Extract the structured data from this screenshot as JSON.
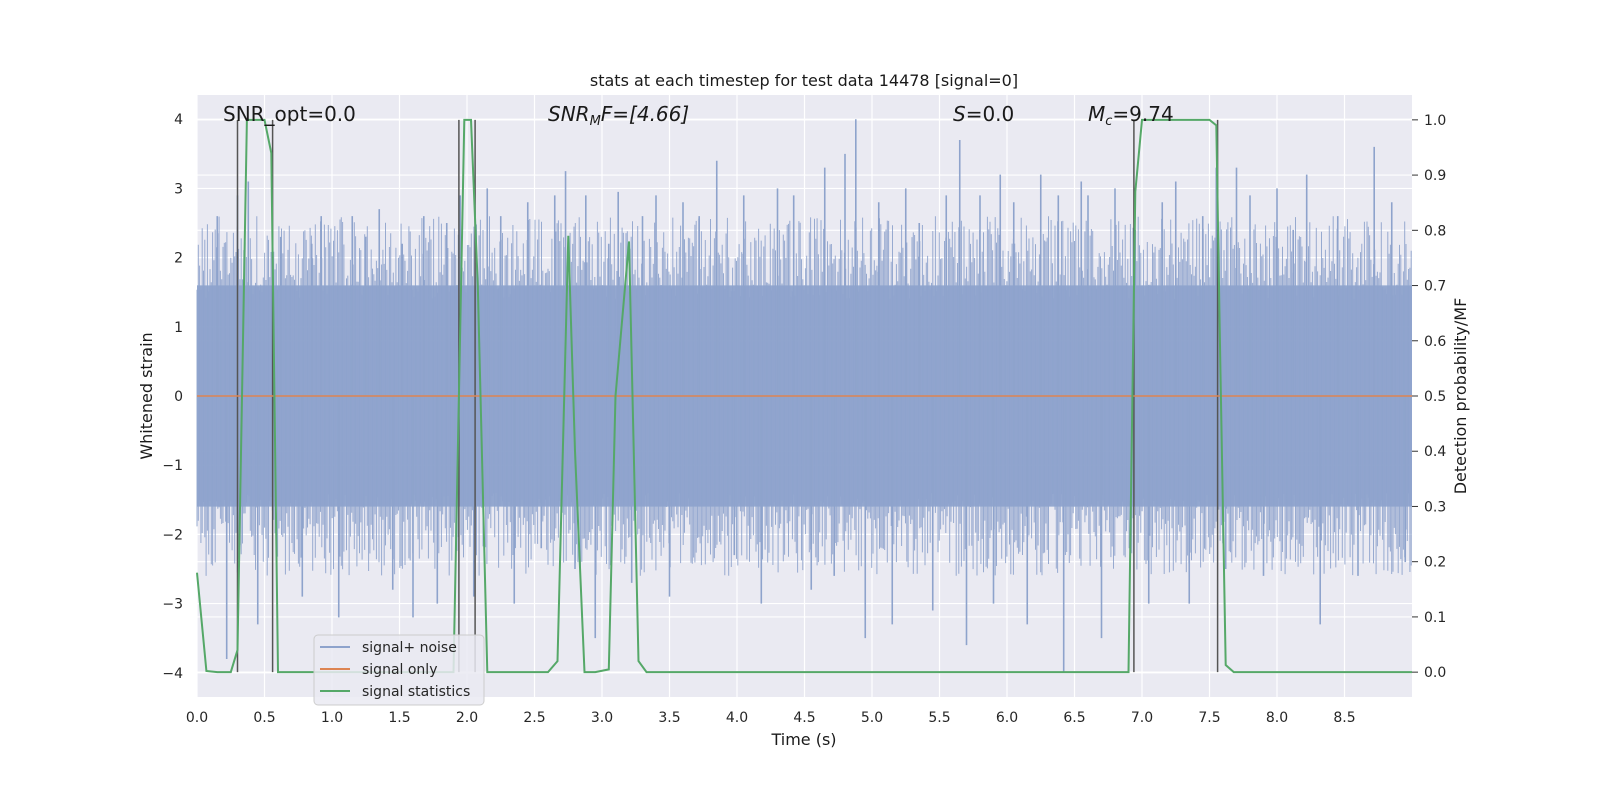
{
  "chart_data": {
    "type": "line",
    "title": "stats at each timestep for test data 14478 [signal=0]",
    "xlabel": "Time (s)",
    "ylabel_left": "Whitened strain",
    "ylabel_right": "Detection probability/MF",
    "xlim": [
      0.0,
      9.0
    ],
    "ylim_left": [
      -4.35,
      4.35
    ],
    "ylim_right": [
      -0.045,
      1.045
    ],
    "xticks": [
      "0.0",
      "0.5",
      "1.0",
      "1.5",
      "2.0",
      "2.5",
      "3.0",
      "3.5",
      "4.0",
      "4.5",
      "5.0",
      "5.5",
      "6.0",
      "6.5",
      "7.0",
      "7.5",
      "8.0",
      "8.5"
    ],
    "yticks_left": [
      "4",
      "3",
      "2",
      "1",
      "0",
      "−1",
      "−2",
      "−3",
      "−4"
    ],
    "yticks_right": [
      "1.0",
      "0.9",
      "0.8",
      "0.7",
      "0.6",
      "0.5",
      "0.4",
      "0.3",
      "0.2",
      "0.1",
      "0.0"
    ],
    "grid": true,
    "legend_position": "lower-left",
    "annotations": {
      "snr_opt": "SNR_opt=0.0",
      "snr_mf_main": "SNR",
      "snr_mf_sub": "M",
      "snr_mf_tail": "F=[4.66]",
      "s_main": "S",
      "s_tail": "=0.0",
      "mc_main": "M",
      "mc_sub": "c",
      "mc_tail": "=9.74"
    },
    "series": [
      {
        "name": "signal+ noise",
        "color": "#8ea3cc",
        "description_values": "whitened noise, amplitude mostly within ±2, peaks up to ±4",
        "envelope_core": 1.6,
        "spikes": [
          [
            0.15,
            2.6
          ],
          [
            0.22,
            -3.8
          ],
          [
            0.3,
            2.9
          ],
          [
            0.38,
            3.1
          ],
          [
            0.45,
            -3.3
          ],
          [
            0.62,
            2.3
          ],
          [
            0.78,
            -2.9
          ],
          [
            0.85,
            2.2
          ],
          [
            0.92,
            2.6
          ],
          [
            1.05,
            -3.2
          ],
          [
            1.15,
            2.6
          ],
          [
            1.25,
            2.3
          ],
          [
            1.35,
            2.7
          ],
          [
            1.45,
            -2.8
          ],
          [
            1.52,
            2.2
          ],
          [
            1.6,
            -3.2
          ],
          [
            1.68,
            2.6
          ],
          [
            1.78,
            -3.0
          ],
          [
            1.85,
            2.5
          ],
          [
            1.95,
            2.9
          ],
          [
            2.05,
            -2.9
          ],
          [
            2.15,
            3.0
          ],
          [
            2.25,
            2.6
          ],
          [
            2.35,
            -3.0
          ],
          [
            2.45,
            2.8
          ],
          [
            2.55,
            -2.2
          ],
          [
            2.65,
            2.9
          ],
          [
            2.73,
            3.25
          ],
          [
            2.8,
            -2.5
          ],
          [
            2.88,
            2.9
          ],
          [
            2.95,
            -3.5
          ],
          [
            3.05,
            2.2
          ],
          [
            3.12,
            2.95
          ],
          [
            3.22,
            -2.7
          ],
          [
            3.3,
            2.6
          ],
          [
            3.4,
            2.9
          ],
          [
            3.5,
            -2.9
          ],
          [
            3.6,
            2.8
          ],
          [
            3.72,
            2.6
          ],
          [
            3.85,
            3.4
          ],
          [
            3.98,
            -2.3
          ],
          [
            4.05,
            2.9
          ],
          [
            4.18,
            -3.0
          ],
          [
            4.3,
            3.0
          ],
          [
            4.42,
            2.9
          ],
          [
            4.55,
            -2.8
          ],
          [
            4.65,
            3.3
          ],
          [
            4.72,
            -2.6
          ],
          [
            4.8,
            3.5
          ],
          [
            4.88,
            4.0
          ],
          [
            4.95,
            -3.5
          ],
          [
            5.05,
            2.8
          ],
          [
            5.15,
            -3.3
          ],
          [
            5.25,
            3.0
          ],
          [
            5.35,
            2.5
          ],
          [
            5.45,
            -3.1
          ],
          [
            5.55,
            2.9
          ],
          [
            5.65,
            3.7
          ],
          [
            5.7,
            -3.6
          ],
          [
            5.8,
            2.9
          ],
          [
            5.9,
            -3.0
          ],
          [
            5.95,
            3.2
          ],
          [
            6.05,
            2.8
          ],
          [
            6.15,
            -3.3
          ],
          [
            6.25,
            3.2
          ],
          [
            6.38,
            2.9
          ],
          [
            6.42,
            -4.0
          ],
          [
            6.55,
            3.1
          ],
          [
            6.6,
            2.9
          ],
          [
            6.7,
            -3.5
          ],
          [
            6.8,
            3.0
          ],
          [
            6.95,
            2.4
          ],
          [
            7.05,
            -3.0
          ],
          [
            7.15,
            2.8
          ],
          [
            7.25,
            3.1
          ],
          [
            7.35,
            -3.0
          ],
          [
            7.45,
            2.6
          ],
          [
            7.55,
            3.3
          ],
          [
            7.62,
            -2.5
          ],
          [
            7.7,
            3.3
          ],
          [
            7.8,
            2.9
          ],
          [
            7.9,
            -2.6
          ],
          [
            8.0,
            3.0
          ],
          [
            8.12,
            2.4
          ],
          [
            8.22,
            3.2
          ],
          [
            8.32,
            -3.3
          ],
          [
            8.45,
            2.6
          ],
          [
            8.6,
            -2.6
          ],
          [
            8.72,
            3.6
          ],
          [
            8.85,
            2.8
          ],
          [
            8.95,
            -2.4
          ]
        ]
      },
      {
        "name": "signal only",
        "color": "#dd8452",
        "x": [
          0.0,
          9.0
        ],
        "y": [
          0.0,
          0.0
        ]
      },
      {
        "name": "signal statistics",
        "color": "#55a868",
        "axis": "right",
        "x": [
          0.0,
          0.07,
          0.15,
          0.25,
          0.3,
          0.37,
          0.45,
          0.5,
          0.55,
          0.6,
          0.63,
          0.68,
          0.75,
          1.5,
          1.9,
          1.98,
          2.03,
          2.08,
          2.15,
          2.2,
          2.25,
          2.35,
          2.5,
          2.6,
          2.67,
          2.75,
          2.8,
          2.87,
          2.95,
          3.05,
          3.1,
          3.2,
          3.27,
          3.33,
          3.5,
          6.5,
          6.9,
          6.95,
          7.0,
          7.5,
          7.55,
          7.58,
          7.62,
          7.68,
          8.0,
          9.0
        ],
        "y": [
          0.18,
          0.002,
          0.0,
          0.0,
          0.04,
          1.0,
          1.0,
          1.0,
          0.94,
          0.0,
          0.0,
          0.0,
          0.0,
          0.0,
          0.0,
          1.0,
          1.0,
          0.7,
          0.0,
          0.0,
          0.0,
          0.0,
          0.0,
          0.0,
          0.02,
          0.79,
          0.4,
          0.0,
          0.0,
          0.005,
          0.5,
          0.78,
          0.02,
          0.0,
          0.0,
          0.0,
          0.0,
          0.87,
          1.0,
          1.0,
          0.99,
          0.56,
          0.013,
          0.0,
          0.0,
          0.0
        ]
      }
    ],
    "vertical_markers": [
      0.3,
      0.56,
      1.94,
      2.06,
      6.94,
      7.56
    ]
  }
}
